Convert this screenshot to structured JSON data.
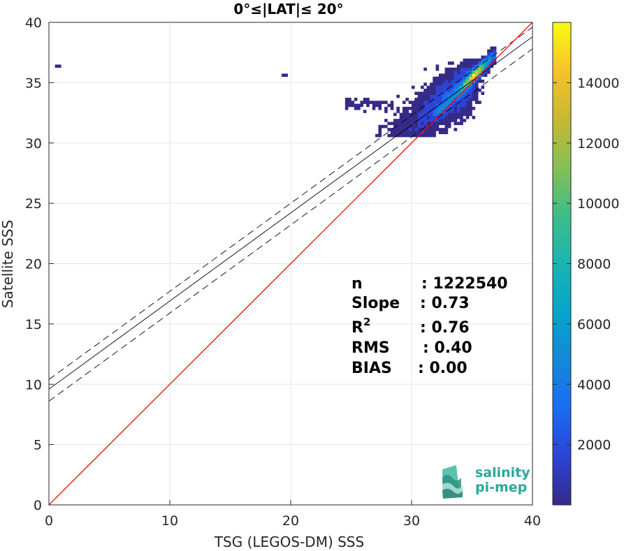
{
  "chart_data": {
    "type": "heatmap",
    "title": "0°≤|LAT|≤ 20°",
    "xlabel": "TSG (LEGOS-DM) SSS",
    "ylabel": "Satellite SSS",
    "xlim": [
      0,
      40
    ],
    "ylim": [
      0,
      40
    ],
    "xticks": [
      "0",
      "10",
      "20",
      "30",
      "40"
    ],
    "yticks": [
      "0",
      "5",
      "10",
      "15",
      "20",
      "25",
      "30",
      "35",
      "40"
    ],
    "grid": true,
    "colorbar": {
      "range": [
        0,
        16000
      ],
      "ticks": [
        "2000",
        "4000",
        "6000",
        "8000",
        "10000",
        "12000",
        "14000"
      ],
      "tick_values": [
        2000,
        4000,
        6000,
        8000,
        10000,
        12000,
        14000
      ],
      "colormap": "parula"
    },
    "lines": {
      "identity": {
        "slope": 1.0,
        "intercept": 0.0,
        "color": "#ff0000"
      },
      "fit": {
        "slope": 0.73,
        "intercept": 9.6,
        "color": "#000000"
      },
      "fit_upper": {
        "slope": 0.73,
        "intercept": 10.4,
        "color": "#000000",
        "style": "dashed"
      },
      "fit_lower": {
        "slope": 0.73,
        "intercept": 8.6,
        "color": "#000000",
        "style": "dashed"
      }
    },
    "density_cluster": {
      "x_range": [
        24.5,
        37
      ],
      "y_range": [
        30.5,
        37
      ],
      "peak_center": [
        35.0,
        35.1
      ],
      "peak_count": 15500,
      "outliers": [
        [
          0.5,
          36.3
        ],
        [
          19.3,
          35.7
        ]
      ]
    },
    "stats": [
      {
        "label": "n",
        "sup": "",
        "value": ": 1222540"
      },
      {
        "label": "Slope",
        "sup": "",
        "value": ": 0.73"
      },
      {
        "label": "R",
        "sup": "2",
        "value": ": 0.76"
      },
      {
        "label": "RMS",
        "sup": "",
        "value": ": 0.40"
      },
      {
        "label": "BIAS",
        "sup": "",
        "value": ": 0.00"
      }
    ]
  },
  "logo": {
    "line1": "salinity",
    "line2": "pi-mep"
  }
}
